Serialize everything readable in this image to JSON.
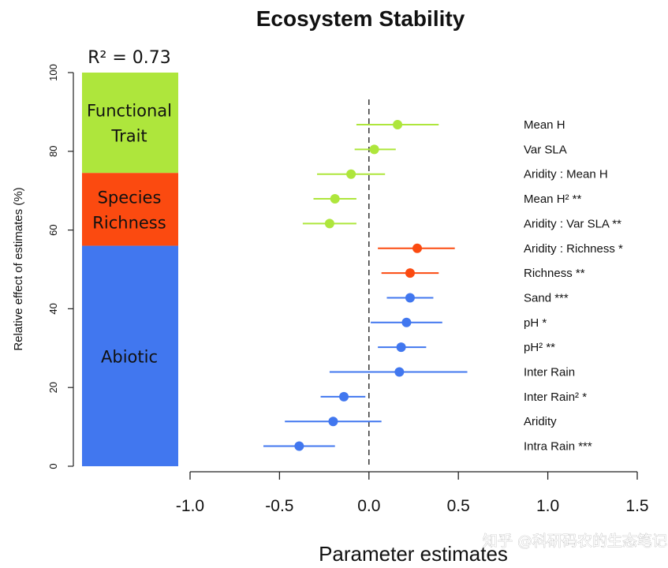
{
  "chart_data": {
    "type": "forest",
    "title": "Ecosystem Stability",
    "annotation": "R² = 0.73",
    "xlabel": "Parameter estimates",
    "ylabel": "Relative effect of estimates (%)",
    "xlim": [
      -1.0,
      1.5
    ],
    "xticks": [
      "-1.0",
      "-0.5",
      "0.0",
      "0.5",
      "1.0",
      "1.5"
    ],
    "ylim": [
      0,
      100
    ],
    "yticks": [
      "0",
      "20",
      "40",
      "60",
      "80",
      "100"
    ],
    "reference_line_x": 0,
    "groups": [
      {
        "name": "Functional Trait",
        "lines": [
          "Functional",
          "Trait"
        ],
        "color": "#aee63c",
        "range": [
          74.5,
          100
        ]
      },
      {
        "name": "Species Richness",
        "lines": [
          "Species",
          "Richness"
        ],
        "color": "#fb4a10",
        "range": [
          56,
          74.5
        ]
      },
      {
        "name": "Abiotic",
        "lines": [
          "Abiotic"
        ],
        "color": "#4177ef",
        "range": [
          0,
          56
        ]
      }
    ],
    "terms": [
      {
        "label": "Mean H",
        "estimate": 0.16,
        "ci": [
          -0.07,
          0.39
        ],
        "group": "Functional Trait"
      },
      {
        "label": "Var SLA",
        "estimate": 0.03,
        "ci": [
          -0.08,
          0.15
        ],
        "group": "Functional Trait"
      },
      {
        "label": "Aridity : Mean H",
        "estimate": -0.1,
        "ci": [
          -0.29,
          0.09
        ],
        "group": "Functional Trait"
      },
      {
        "label": "Mean H² **",
        "estimate": -0.19,
        "ci": [
          -0.31,
          -0.07
        ],
        "group": "Functional Trait"
      },
      {
        "label": "Aridity : Var SLA  **",
        "estimate": -0.22,
        "ci": [
          -0.37,
          -0.07
        ],
        "group": "Functional Trait"
      },
      {
        "label": "Aridity : Richness *",
        "estimate": 0.27,
        "ci": [
          0.05,
          0.48
        ],
        "group": "Species Richness"
      },
      {
        "label": "Richness **",
        "estimate": 0.23,
        "ci": [
          0.07,
          0.39
        ],
        "group": "Species Richness"
      },
      {
        "label": "Sand ***",
        "estimate": 0.23,
        "ci": [
          0.1,
          0.36
        ],
        "group": "Abiotic"
      },
      {
        "label": "pH *",
        "estimate": 0.21,
        "ci": [
          0.01,
          0.41
        ],
        "group": "Abiotic"
      },
      {
        "label": "pH² **",
        "estimate": 0.18,
        "ci": [
          0.05,
          0.32
        ],
        "group": "Abiotic"
      },
      {
        "label": "Inter Rain",
        "estimate": 0.17,
        "ci": [
          -0.22,
          0.55
        ],
        "group": "Abiotic"
      },
      {
        "label": "Inter Rain² *",
        "estimate": -0.14,
        "ci": [
          -0.27,
          -0.02
        ],
        "group": "Abiotic"
      },
      {
        "label": "Aridity",
        "estimate": -0.2,
        "ci": [
          -0.47,
          0.07
        ],
        "group": "Abiotic"
      },
      {
        "label": "Intra Rain ***",
        "estimate": -0.39,
        "ci": [
          -0.59,
          -0.19
        ],
        "group": "Abiotic"
      }
    ]
  },
  "watermark": "知乎 @科研码农的生态笔记"
}
